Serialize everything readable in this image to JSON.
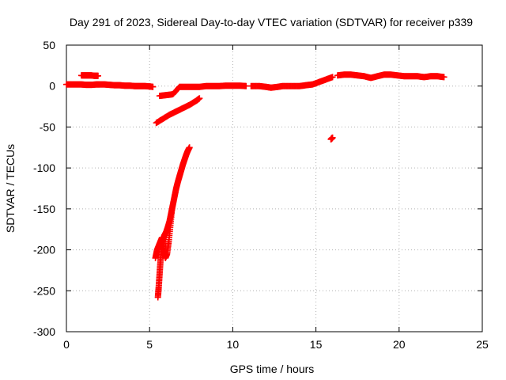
{
  "chart_data": {
    "type": "scatter",
    "title": "Day 291 of 2023, Sidereal Day-to-day VTEC variation (SDTVAR) for receiver p339",
    "xlabel": "GPS time / hours",
    "ylabel": "SDTVAR / TECUs",
    "xlim": [
      0,
      25
    ],
    "ylim": [
      -300,
      50
    ],
    "xticks": [
      0,
      5,
      10,
      15,
      20,
      25
    ],
    "yticks": [
      50,
      0,
      -50,
      -100,
      -150,
      -200,
      -250,
      -300
    ],
    "grid": true,
    "marker": "plus",
    "color": "#ff0000",
    "series": [
      {
        "name": "SDTVAR",
        "segments": [
          {
            "x": [
              0.0,
              0.3,
              0.6,
              0.9,
              1.2,
              1.5,
              1.8,
              2.0,
              2.3,
              2.6,
              2.9,
              3.2,
              3.5,
              3.8,
              4.1,
              4.4,
              4.7,
              5.0,
              5.2
            ],
            "y": [
              2,
              2,
              2,
              2,
              1.5,
              1.5,
              2,
              2,
              2,
              1.5,
              1,
              1,
              0.5,
              0.5,
              0,
              0,
              0,
              -0.5,
              -1
            ]
          },
          {
            "x": [
              0.9,
              1.1,
              1.3,
              1.5,
              1.7,
              1.9
            ],
            "y": [
              13,
              13,
              13,
              13,
              12.5,
              12.5
            ]
          },
          {
            "x": [
              5.6,
              6.0,
              6.4,
              6.8,
              7.2,
              7.6,
              8.0,
              8.4,
              8.8,
              9.2,
              9.6,
              10.0,
              10.4,
              10.8
            ],
            "y": [
              -12,
              -11,
              -10,
              -1,
              -1,
              -1,
              -1,
              0,
              0,
              0,
              0.5,
              0.5,
              0.5,
              0
            ]
          },
          {
            "x": [
              11.1,
              11.6,
              12.0,
              12.3,
              12.7,
              13.0,
              13.5,
              14.0,
              14.4,
              14.8,
              15.2,
              15.6,
              16.0
            ],
            "y": [
              0,
              0,
              -1,
              -2,
              -1,
              0,
              0,
              0,
              1,
              2,
              5,
              8,
              11
            ]
          },
          {
            "x": [
              16.3,
              16.7,
              17.1,
              17.5,
              17.9,
              18.3,
              18.7,
              19.1,
              19.5,
              19.9,
              20.3,
              20.7,
              21.1,
              21.5,
              21.9,
              22.3,
              22.7
            ],
            "y": [
              13,
              14,
              14,
              13,
              12,
              10,
              12,
              14,
              14,
              13,
              12,
              12,
              12,
              11,
              12,
              12,
              11
            ]
          },
          {
            "x": [
              5.4,
              5.8,
              6.2,
              6.6,
              7.0,
              7.4,
              7.8,
              8.0
            ],
            "y": [
              -45,
              -40,
              -35,
              -31,
              -27,
              -23,
              -18,
              -15
            ]
          },
          {
            "x": [
              5.5,
              5.55,
              5.6,
              5.65,
              5.7,
              5.75,
              5.8,
              5.9,
              6.0,
              6.1,
              6.2,
              6.3,
              6.4,
              6.5,
              6.6,
              6.7,
              6.8,
              6.9,
              7.0,
              7.1,
              7.2,
              7.3,
              7.4
            ],
            "y": [
              -258,
              -245,
              -230,
              -215,
              -200,
              -190,
              -188,
              -182,
              -178,
              -172,
              -165,
              -155,
              -145,
              -135,
              -125,
              -117,
              -110,
              -103,
              -96,
              -90,
              -84,
              -79,
              -75
            ]
          },
          {
            "x": [
              5.35,
              5.45,
              5.55,
              5.65,
              5.75,
              5.85,
              5.95,
              6.05,
              6.15,
              6.25,
              6.35
            ],
            "y": [
              -210,
              -200,
              -195,
              -190,
              -185,
              -200,
              -210,
              -205,
              -190,
              -170,
              -150
            ]
          },
          {
            "x": [
              15.9,
              16.0
            ],
            "y": [
              -65,
              -63
            ]
          }
        ]
      }
    ]
  }
}
